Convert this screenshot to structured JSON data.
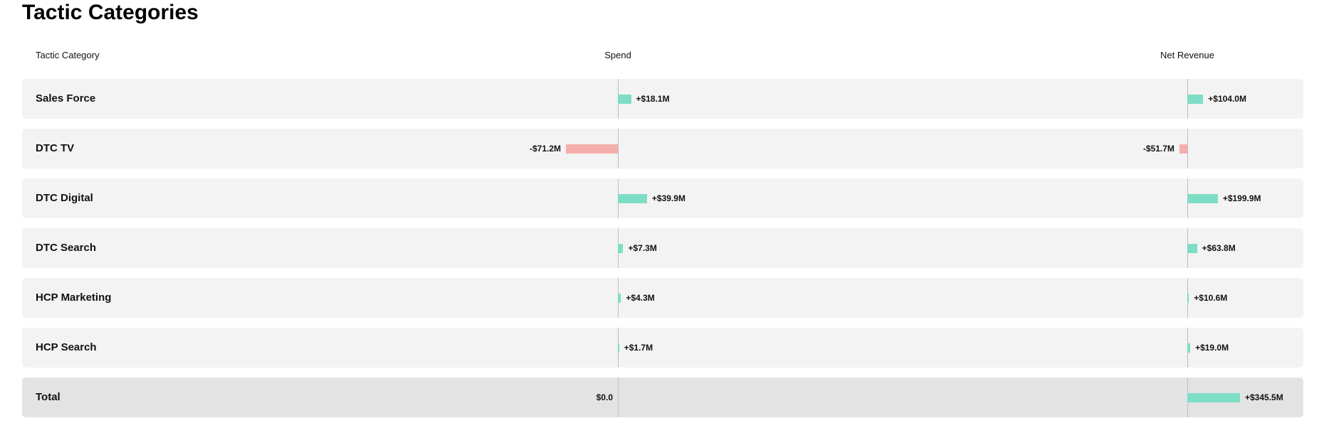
{
  "page": {
    "title": "Tactic Categories"
  },
  "table": {
    "headers": {
      "category": "Tactic Category",
      "spend": "Spend",
      "net_revenue": "Net Revenue"
    },
    "colors": {
      "positive": "#7dddc5",
      "negative": "#f5aeab"
    },
    "rows": [
      {
        "category": "Sales Force",
        "spend": 18.1,
        "spend_label": "+$18.1M",
        "net_revenue": 104.0,
        "net_revenue_label": "+$104.0M"
      },
      {
        "category": "DTC TV",
        "spend": -71.2,
        "spend_label": "-$71.2M",
        "net_revenue": -51.7,
        "net_revenue_label": "-$51.7M"
      },
      {
        "category": "DTC Digital",
        "spend": 39.9,
        "spend_label": "+$39.9M",
        "net_revenue": 199.9,
        "net_revenue_label": "+$199.9M"
      },
      {
        "category": "DTC Search",
        "spend": 7.3,
        "spend_label": "+$7.3M",
        "net_revenue": 63.8,
        "net_revenue_label": "+$63.8M"
      },
      {
        "category": "HCP Marketing",
        "spend": 4.3,
        "spend_label": "+$4.3M",
        "net_revenue": 10.6,
        "net_revenue_label": "+$10.6M"
      },
      {
        "category": "HCP Search",
        "spend": 1.7,
        "spend_label": "+$1.7M",
        "net_revenue": 19.0,
        "net_revenue_label": "+$19.0M"
      }
    ],
    "total": {
      "category": "Total",
      "spend": 0.0,
      "spend_label": "$0.0",
      "net_revenue": 345.5,
      "net_revenue_label": "+$345.5M"
    }
  }
}
